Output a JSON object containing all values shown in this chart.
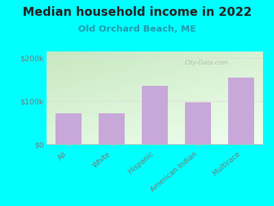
{
  "title": "Median household income in 2022",
  "subtitle": "Old Orchard Beach, ME",
  "categories": [
    "All",
    "White",
    "Hispanic",
    "American Indian",
    "Multirace"
  ],
  "values": [
    72000,
    72000,
    135000,
    97000,
    155000
  ],
  "bar_color": "#C8A8D8",
  "background_outer": "#00FFFF",
  "background_inner_top_left": "#c8e8c0",
  "background_inner_bottom_right": "#f0fff0",
  "title_fontsize": 12.5,
  "subtitle_fontsize": 9.5,
  "ylabel_ticks": [
    "$0",
    "$100k",
    "$200k"
  ],
  "ytick_vals": [
    0,
    100000,
    200000
  ],
  "ylim": [
    0,
    215000
  ],
  "watermark": "City-Data.com",
  "title_color": "#222222",
  "subtitle_color": "#2299aa",
  "tick_label_color": "#777777",
  "bar_width": 0.6,
  "grid_color": "#dddddd",
  "bottom_spine_color": "#bbbbbb"
}
